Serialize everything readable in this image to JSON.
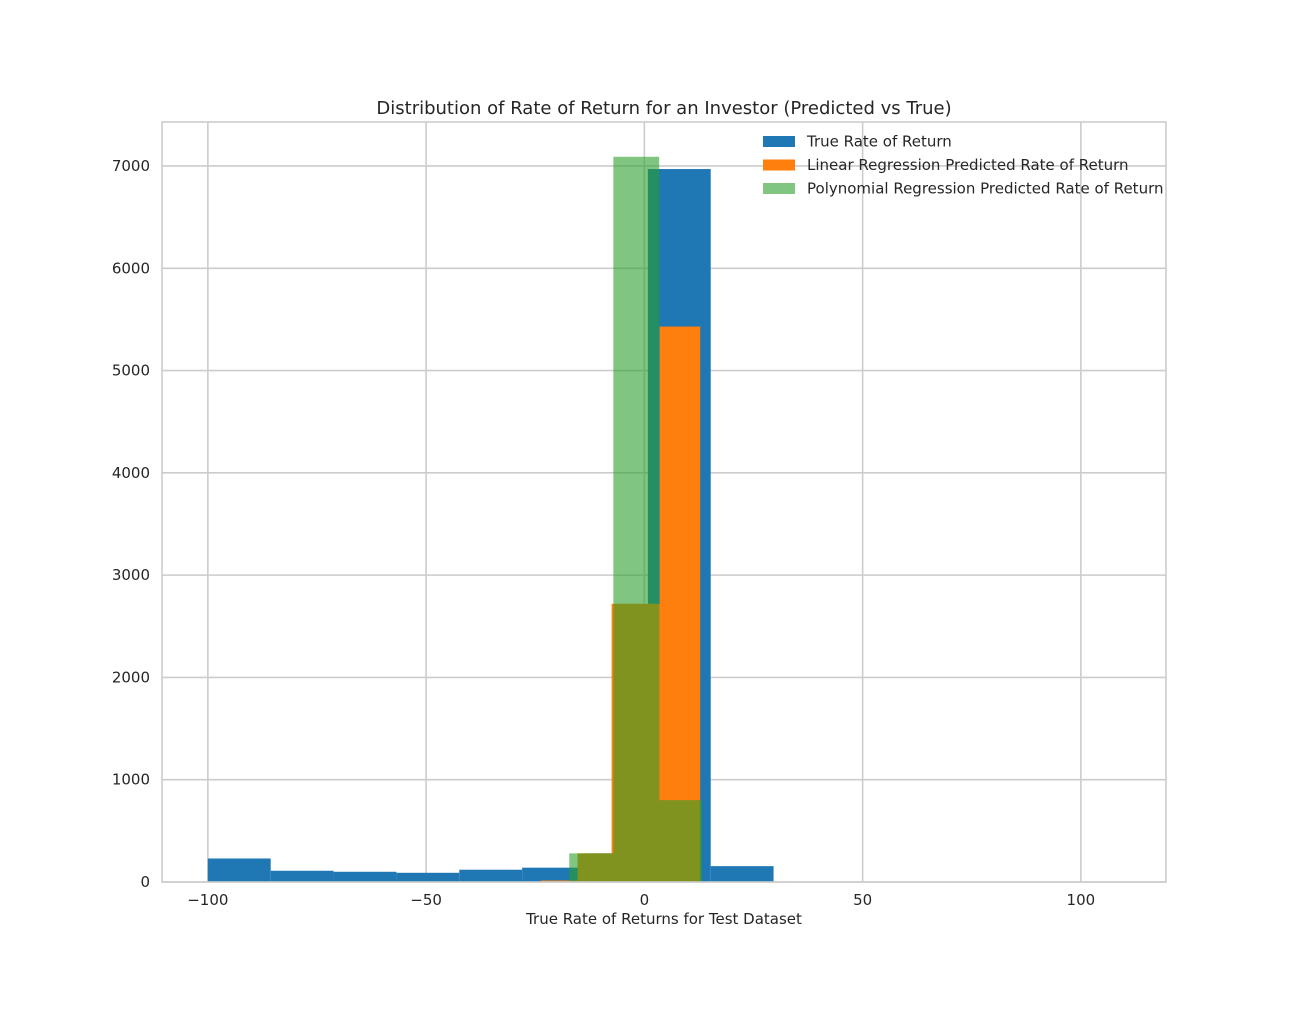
{
  "chart_data": {
    "type": "bar",
    "subtype": "histogram-overlay",
    "title": "Distribution of Rate of Return for an Investor (Predicted vs True)",
    "xlabel": "True Rate of Returns for Test Dataset",
    "ylabel": "",
    "xlim": [
      -110.5,
      119.5
    ],
    "ylim": [
      0,
      7430
    ],
    "x_ticks": [
      -100,
      -50,
      0,
      50,
      100
    ],
    "x_tick_labels": [
      "−100",
      "−50",
      "0",
      "50",
      "100"
    ],
    "y_ticks": [
      0,
      1000,
      2000,
      3000,
      4000,
      5000,
      6000,
      7000
    ],
    "y_tick_labels": [
      "0",
      "1000",
      "2000",
      "3000",
      "4000",
      "5000",
      "6000",
      "7000"
    ],
    "grid": true,
    "legend_position": "top-right",
    "series": [
      {
        "name": "True Rate of Return",
        "color": "#1f77b4",
        "opacity": 1.0,
        "bin_edges": [
          -100.0,
          -85.6,
          -71.2,
          -56.8,
          -42.4,
          -28.0,
          -13.6,
          0.8,
          15.2,
          29.6,
          44.0,
          58.4,
          72.8,
          87.2,
          101.6,
          116.0
        ],
        "counts": [
          230,
          110,
          100,
          90,
          120,
          140,
          280,
          6970,
          155,
          0,
          0,
          0,
          0,
          0,
          0
        ]
      },
      {
        "name": "Linear Regression Predicted Rate of Return",
        "color": "#ff7f0e",
        "opacity": 1.0,
        "bin_edges": [
          -23.7,
          -15.3,
          -7.5,
          3.5,
          12.8
        ],
        "counts": [
          15,
          280,
          2720,
          5430
        ]
      },
      {
        "name": "Polynomial Regression Predicted Rate of Return",
        "color": "#2ca02c",
        "opacity": 0.6,
        "bin_edges": [
          -17.2,
          -7.1,
          3.4,
          13.2
        ],
        "counts": [
          280,
          7090,
          800
        ]
      }
    ]
  }
}
